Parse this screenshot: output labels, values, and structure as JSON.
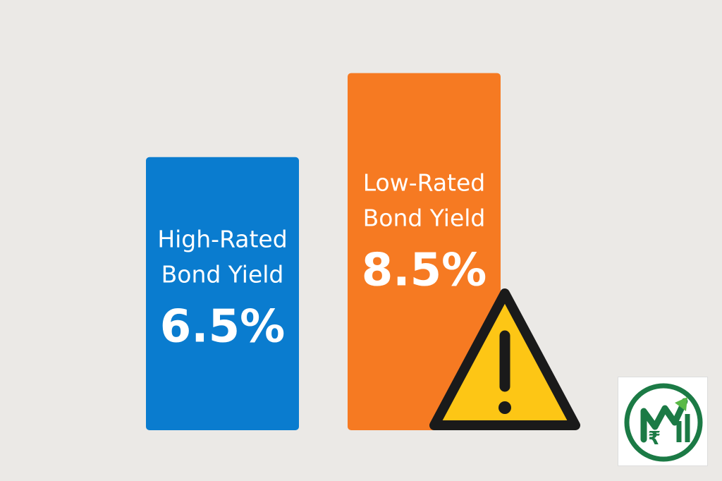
{
  "chart_data": {
    "type": "bar",
    "categories": [
      "High-Rated Bond Yield",
      "Low-Rated Bond Yield"
    ],
    "values": [
      6.5,
      8.5
    ],
    "value_labels": [
      "6.5%",
      "8.5%"
    ],
    "category_lines": [
      [
        "High-Rated",
        "Bond Yield"
      ],
      [
        "Low-Rated",
        "Bond Yield"
      ]
    ],
    "unit": "%",
    "title": "",
    "xlabel": "",
    "ylabel": "",
    "ylim": [
      0,
      9.5
    ],
    "grid": false,
    "legend": "none",
    "colors": [
      "#0a7ccf",
      "#f67a22"
    ]
  },
  "icons": {
    "warning": "warning-triangle-icon",
    "logo": "rupee-growth-logo-icon"
  },
  "colors": {
    "background": "#ebe9e6",
    "warning_fill": "#fdc615",
    "warning_stroke": "#1a1a1a",
    "logo_green": "#1b7a45",
    "logo_accent": "#5ab946"
  }
}
